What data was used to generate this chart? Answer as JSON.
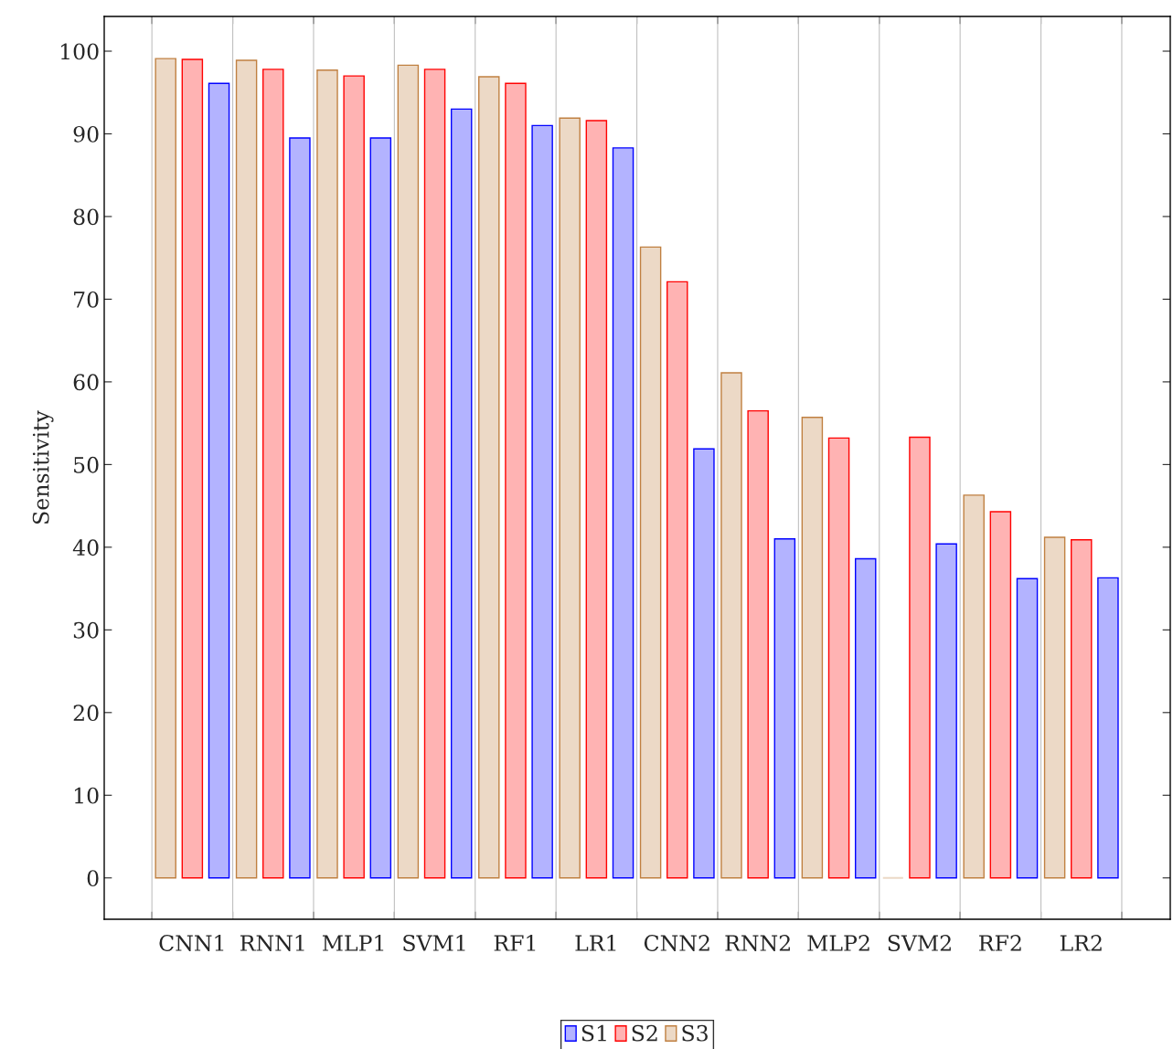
{
  "chart_data": {
    "type": "bar",
    "ylabel": "Sensitivity",
    "categories": [
      "CNN1",
      "RNN1",
      "MLP1",
      "SVM1",
      "RF1",
      "LR1",
      "CNN2",
      "RNN2",
      "MLP2",
      "SVM2",
      "RF2",
      "LR2"
    ],
    "series": [
      {
        "name": "S1",
        "color": "#b3b3ff",
        "values": [
          96.1,
          89.5,
          89.5,
          93.0,
          91.0,
          88.3,
          51.9,
          41.0,
          38.6,
          40.4,
          36.2,
          36.3
        ]
      },
      {
        "name": "S2",
        "color": "#ffb3b3",
        "values": [
          99.0,
          97.8,
          97.0,
          97.8,
          96.1,
          91.6,
          72.1,
          56.5,
          53.2,
          53.3,
          44.3,
          40.9
        ]
      },
      {
        "name": "S3",
        "color": "#ecd9c6",
        "values": [
          99.1,
          98.9,
          97.7,
          98.3,
          96.9,
          91.9,
          76.3,
          61.1,
          55.7,
          0,
          46.3,
          41.2
        ]
      }
    ],
    "ylim": [
      -5,
      104.2
    ],
    "yticks": [
      0,
      10,
      20,
      30,
      40,
      50,
      60,
      70,
      80,
      90,
      100
    ],
    "grid": "x",
    "legend": "bottom"
  }
}
